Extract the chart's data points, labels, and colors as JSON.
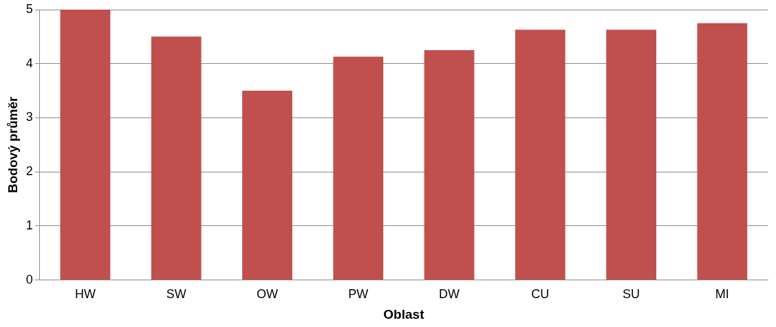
{
  "chart_data": {
    "type": "bar",
    "xlabel": "Oblast",
    "ylabel": "Bodový průměr",
    "categories": [
      "HW",
      "SW",
      "OW",
      "PW",
      "DW",
      "CU",
      "SU",
      "MI"
    ],
    "values": [
      5,
      4.5,
      3.5,
      4.13,
      4.25,
      4.63,
      4.63,
      4.75
    ],
    "color": "#c0504d",
    "ylim": [
      0,
      5
    ],
    "yticks": [
      0,
      1,
      2,
      3,
      4,
      5
    ],
    "grid": "y",
    "legend": false
  }
}
